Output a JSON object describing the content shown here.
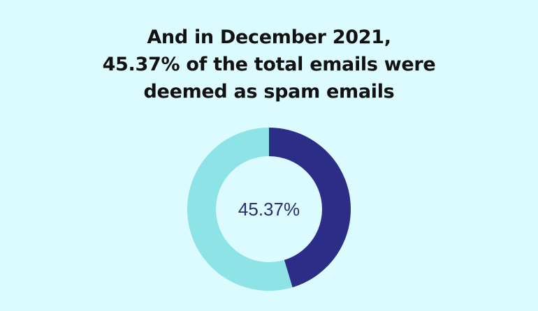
{
  "title_lines": [
    "And in December 2021,",
    "45.37% of the total emails were",
    "deemed as spam emails"
  ],
  "chart_data": {
    "type": "pie",
    "variant": "donut",
    "center_label": "45.37%",
    "slices": [
      {
        "value": 45.37,
        "color": "#2b2d87"
      },
      {
        "value": 54.63,
        "color": "#8ee3e6"
      }
    ]
  },
  "colors": {
    "background": "#dcfbff",
    "donut_hole": "#dcfbff",
    "title_text": "#121212",
    "center_text": "#2a2d6b"
  }
}
